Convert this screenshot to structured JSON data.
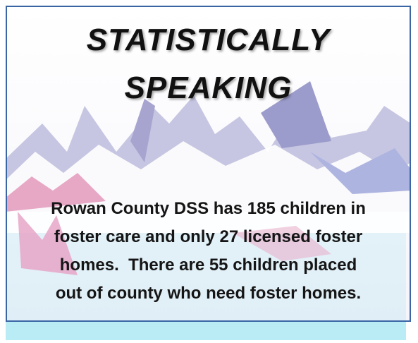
{
  "title": {
    "lines": [
      "STATISTICALLY",
      "SPEAKING"
    ]
  },
  "body": {
    "lines": [
      "Rowan County DSS has 185 children in",
      "foster care and only 27 licensed foster",
      "homes.  There are 55 children placed",
      "out of county who need foster homes."
    ]
  }
}
